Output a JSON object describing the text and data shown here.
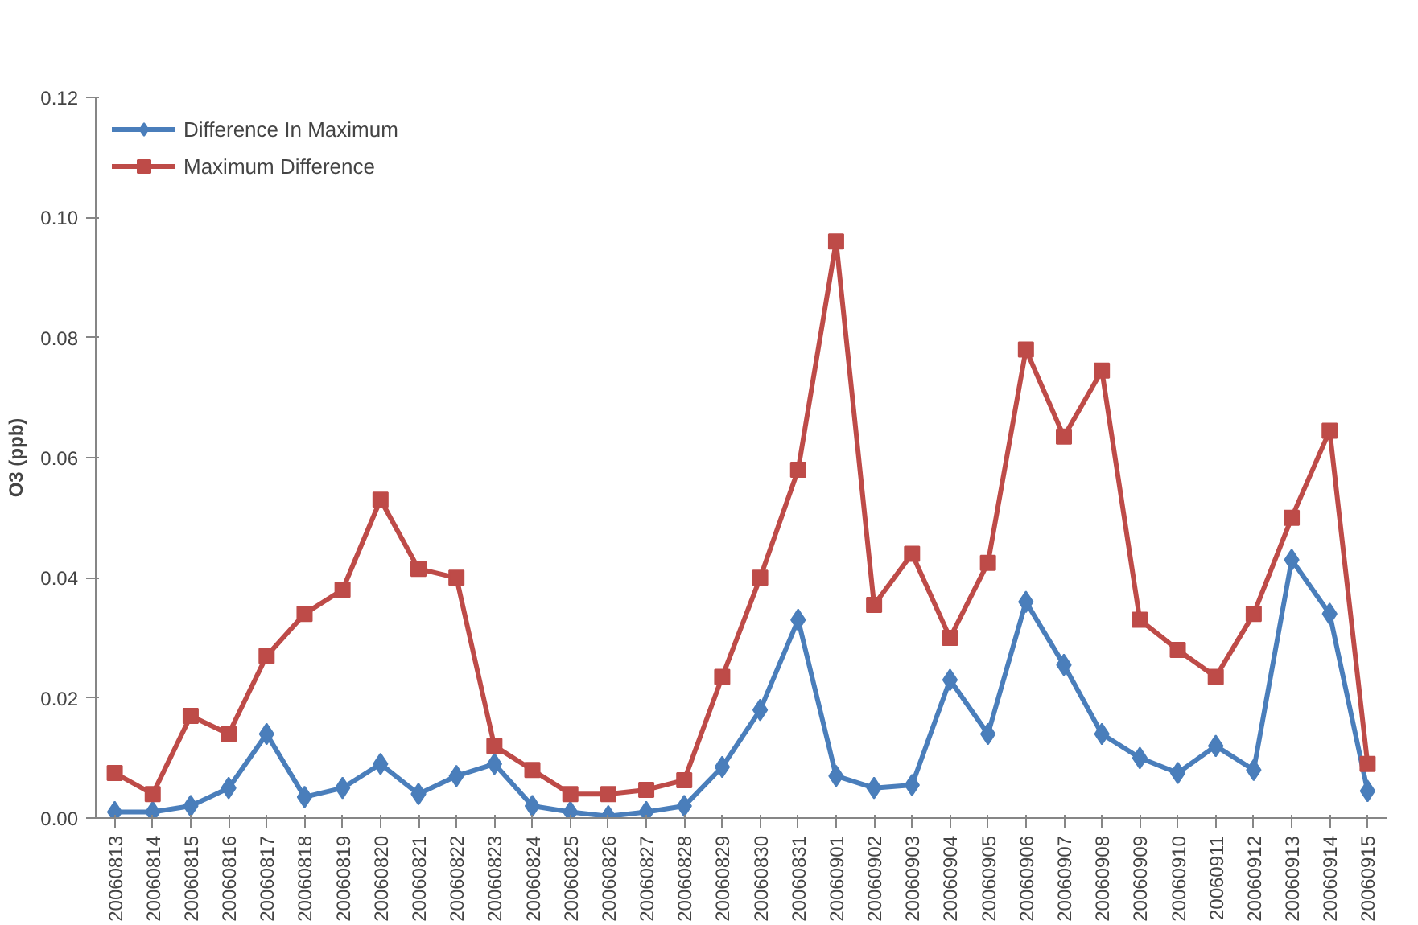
{
  "chart_data": {
    "type": "line",
    "ylabel": "O3 (ppb)",
    "categories": [
      "20060813",
      "20060814",
      "20060815",
      "20060816",
      "20060817",
      "20060818",
      "20060819",
      "20060820",
      "20060821",
      "20060822",
      "20060823",
      "20060824",
      "20060825",
      "20060826",
      "20060827",
      "20060828",
      "20060829",
      "20060830",
      "20060831",
      "20060901",
      "20060902",
      "20060903",
      "20060904",
      "20060905",
      "20060906",
      "20060907",
      "20060908",
      "20060909",
      "20060910",
      "20060911",
      "20060912",
      "20060913",
      "20060914",
      "20060915"
    ],
    "series": [
      {
        "name": "Difference In Maximum",
        "color": "#4a7ebb",
        "marker": "diamond",
        "values": [
          0.001,
          0.001,
          0.002,
          0.005,
          0.014,
          0.0035,
          0.005,
          0.009,
          0.004,
          0.007,
          0.009,
          0.002,
          0.001,
          0.0003,
          0.001,
          0.002,
          0.0085,
          0.018,
          0.033,
          0.007,
          0.005,
          0.0055,
          0.023,
          0.014,
          0.036,
          0.0255,
          0.014,
          0.01,
          0.0075,
          0.012,
          0.008,
          0.043,
          0.034,
          0.0045
        ]
      },
      {
        "name": "Maximum Difference",
        "color": "#be4b48",
        "marker": "square",
        "values": [
          0.0075,
          0.004,
          0.017,
          0.014,
          0.027,
          0.034,
          0.038,
          0.053,
          0.0415,
          0.04,
          0.012,
          0.008,
          0.004,
          0.004,
          0.0047,
          0.0063,
          0.0235,
          0.04,
          0.058,
          0.096,
          0.0355,
          0.044,
          0.03,
          0.0425,
          0.078,
          0.0635,
          0.0745,
          0.033,
          0.028,
          0.0235,
          0.034,
          0.05,
          0.0645,
          0.009
        ]
      }
    ],
    "ylim": [
      0,
      0.12
    ],
    "yticks": [
      {
        "value": 0,
        "label": "0.00"
      },
      {
        "value": 0.02,
        "label": "0.02"
      },
      {
        "value": 0.04,
        "label": "0.04"
      },
      {
        "value": 0.06,
        "label": "0.06"
      },
      {
        "value": 0.08,
        "label": "0.08"
      },
      {
        "value": 0.1,
        "label": "0.10"
      },
      {
        "value": 0.12,
        "label": "0.12"
      }
    ],
    "legend": "top left",
    "line_style": "solid"
  }
}
